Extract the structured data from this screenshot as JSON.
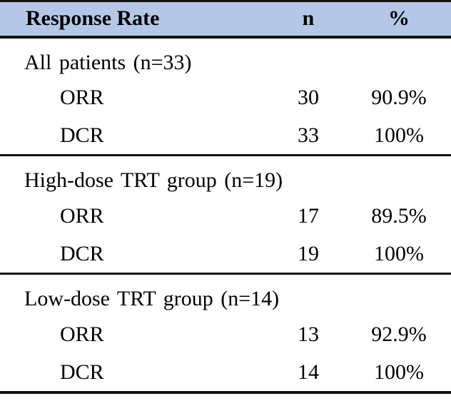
{
  "colors": {
    "header_bg": "#B4C7E7",
    "rule": "#111111",
    "text": "#000000",
    "page_bg": "#ffffff"
  },
  "table": {
    "header": {
      "col1": "Response Rate",
      "col2": "n",
      "col3": "%"
    },
    "sections": [
      {
        "group": "All patients (n=33)",
        "rows": [
          {
            "label": "ORR",
            "n": "30",
            "pct": "90.9%"
          },
          {
            "label": "DCR",
            "n": "33",
            "pct": "100%"
          }
        ]
      },
      {
        "group": "High-dose TRT group (n=19)",
        "rows": [
          {
            "label": "ORR",
            "n": "17",
            "pct": "89.5%"
          },
          {
            "label": "DCR",
            "n": "19",
            "pct": "100%"
          }
        ]
      },
      {
        "group": "Low-dose TRT group (n=14)",
        "rows": [
          {
            "label": "ORR",
            "n": "13",
            "pct": "92.9%"
          },
          {
            "label": "DCR",
            "n": "14",
            "pct": "100%"
          }
        ]
      }
    ]
  },
  "chart_data": {
    "type": "table",
    "title": "Response Rate",
    "columns": [
      "Response Rate",
      "n",
      "%"
    ],
    "rows": [
      [
        "All patients (n=33)",
        "",
        ""
      ],
      [
        "ORR",
        "30",
        "90.9%"
      ],
      [
        "DCR",
        "33",
        "100%"
      ],
      [
        "High-dose TRT group (n=19)",
        "",
        ""
      ],
      [
        "ORR",
        "17",
        "89.5%"
      ],
      [
        "DCR",
        "19",
        "100%"
      ],
      [
        "Low-dose TRT group (n=14)",
        "",
        ""
      ],
      [
        "ORR",
        "13",
        "92.9%"
      ],
      [
        "DCR",
        "14",
        "100%"
      ]
    ]
  }
}
